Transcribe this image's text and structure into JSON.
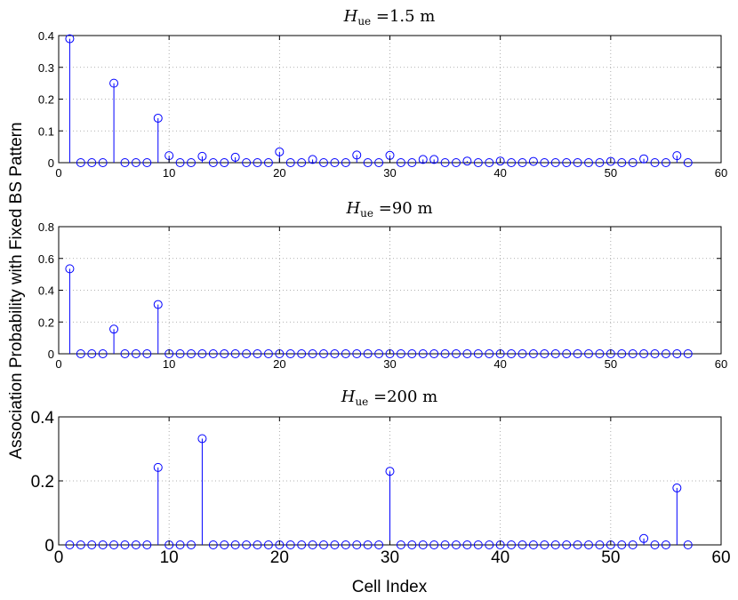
{
  "chart_data": {
    "type": "stem",
    "ylabel": "Association Probability with Fixed BS Pattern",
    "xlabel": "Cell Index",
    "subplots": [
      {
        "title_main": "H",
        "title_sub": "ue",
        "title_rest": " =1.5 m",
        "xlim": [
          0,
          60
        ],
        "ylim": [
          0,
          0.4
        ],
        "xticks": [
          "0",
          "10",
          "20",
          "30",
          "40",
          "50",
          "60"
        ],
        "yticks": [
          "0",
          "0.1",
          "0.2",
          "0.3",
          "0.4"
        ],
        "grid": true,
        "color": "#0000ff",
        "x": [
          1,
          2,
          3,
          4,
          5,
          6,
          7,
          8,
          9,
          10,
          11,
          12,
          13,
          14,
          15,
          16,
          17,
          18,
          19,
          20,
          21,
          22,
          23,
          24,
          25,
          26,
          27,
          28,
          29,
          30,
          31,
          32,
          33,
          34,
          35,
          36,
          37,
          38,
          39,
          40,
          41,
          42,
          43,
          44,
          45,
          46,
          47,
          48,
          49,
          50,
          51,
          52,
          53,
          54,
          55,
          56,
          57
        ],
        "values": [
          0.39,
          0,
          0,
          0,
          0.25,
          0,
          0,
          0,
          0.14,
          0.022,
          0,
          0,
          0.02,
          0,
          0,
          0.017,
          0,
          0,
          0,
          0.034,
          0,
          0,
          0.01,
          0,
          0,
          0,
          0.024,
          0,
          0,
          0.023,
          0,
          0,
          0.01,
          0.01,
          0,
          0,
          0.005,
          0,
          0,
          0.005,
          0,
          0,
          0.004,
          0,
          0,
          0,
          0,
          0,
          0,
          0.004,
          0,
          0,
          0.012,
          0,
          0,
          0.022,
          0
        ]
      },
      {
        "title_main": "H",
        "title_sub": "ue",
        "title_rest": " =90 m",
        "xlim": [
          0,
          60
        ],
        "ylim": [
          0,
          0.8
        ],
        "xticks": [
          "0",
          "10",
          "20",
          "30",
          "40",
          "50",
          "60"
        ],
        "yticks": [
          "0",
          "0.2",
          "0.4",
          "0.6",
          "0.8"
        ],
        "grid": true,
        "color": "#0000ff",
        "x": [
          1,
          2,
          3,
          4,
          5,
          6,
          7,
          8,
          9,
          10,
          11,
          12,
          13,
          14,
          15,
          16,
          17,
          18,
          19,
          20,
          21,
          22,
          23,
          24,
          25,
          26,
          27,
          28,
          29,
          30,
          31,
          32,
          33,
          34,
          35,
          36,
          37,
          38,
          39,
          40,
          41,
          42,
          43,
          44,
          45,
          46,
          47,
          48,
          49,
          50,
          51,
          52,
          53,
          54,
          55,
          56,
          57
        ],
        "values": [
          0.535,
          0,
          0,
          0,
          0.155,
          0,
          0,
          0,
          0.31,
          0,
          0,
          0,
          0,
          0,
          0,
          0,
          0,
          0,
          0,
          0,
          0,
          0,
          0,
          0,
          0,
          0,
          0,
          0,
          0,
          0,
          0,
          0,
          0,
          0,
          0,
          0,
          0,
          0,
          0,
          0,
          0,
          0,
          0,
          0,
          0,
          0,
          0,
          0,
          0,
          0,
          0,
          0,
          0,
          0,
          0,
          0,
          0
        ]
      },
      {
        "title_main": "H",
        "title_sub": "ue",
        "title_rest": " =200 m",
        "xlim": [
          0,
          60
        ],
        "ylim": [
          0,
          0.4
        ],
        "xticks": [
          "0",
          "10",
          "20",
          "30",
          "40",
          "50",
          "60"
        ],
        "yticks": [
          "0",
          "0.2",
          "0.4"
        ],
        "grid": true,
        "color": "#0000ff",
        "x": [
          1,
          2,
          3,
          4,
          5,
          6,
          7,
          8,
          9,
          10,
          11,
          12,
          13,
          14,
          15,
          16,
          17,
          18,
          19,
          20,
          21,
          22,
          23,
          24,
          25,
          26,
          27,
          28,
          29,
          30,
          31,
          32,
          33,
          34,
          35,
          36,
          37,
          38,
          39,
          40,
          41,
          42,
          43,
          44,
          45,
          46,
          47,
          48,
          49,
          50,
          51,
          52,
          53,
          54,
          55,
          56,
          57
        ],
        "values": [
          0,
          0,
          0,
          0,
          0,
          0,
          0,
          0,
          0.242,
          0,
          0,
          0,
          0.332,
          0,
          0,
          0,
          0,
          0,
          0,
          0,
          0,
          0,
          0,
          0,
          0,
          0,
          0,
          0,
          0,
          0.23,
          0,
          0,
          0,
          0,
          0,
          0,
          0,
          0,
          0,
          0,
          0,
          0,
          0,
          0,
          0,
          0,
          0,
          0,
          0,
          0,
          0,
          0,
          0.02,
          0,
          0,
          0.178,
          0
        ]
      }
    ]
  }
}
